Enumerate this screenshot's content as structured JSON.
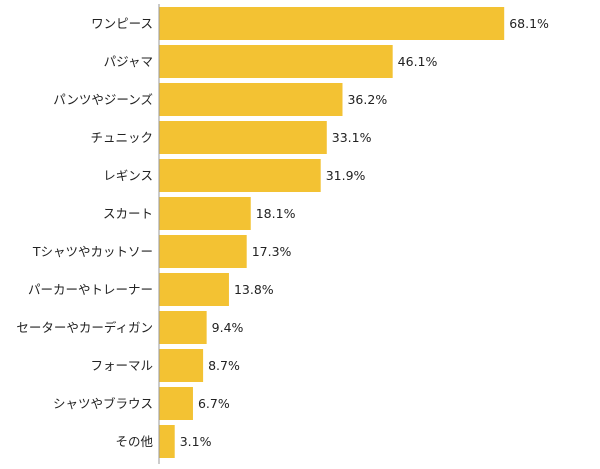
{
  "colors": {
    "bar": "#F3C233",
    "axis": "#999999",
    "text": "#222222"
  },
  "chart_data": {
    "type": "bar",
    "orientation": "horizontal",
    "categories": [
      "ワンピース",
      "パジャマ",
      "パンツやジーンズ",
      "チュニック",
      "レギンス",
      "スカート",
      "Tシャツやカットソー",
      "パーカーやトレーナー",
      "セーターやカーディガン",
      "フォーマル",
      "シャツやブラウス",
      "その他"
    ],
    "values": [
      68.1,
      46.1,
      36.2,
      33.1,
      31.9,
      18.1,
      17.3,
      13.8,
      9.4,
      8.7,
      6.7,
      3.1
    ],
    "value_labels": [
      "68.1%",
      "46.1%",
      "36.2%",
      "33.1%",
      "31.9%",
      "18.1%",
      "17.3%",
      "13.8%",
      "9.4%",
      "8.7%",
      "6.7%",
      "3.1%"
    ],
    "xlim": [
      0,
      87
    ],
    "grid": false,
    "title": "",
    "xlabel": "",
    "ylabel": ""
  }
}
